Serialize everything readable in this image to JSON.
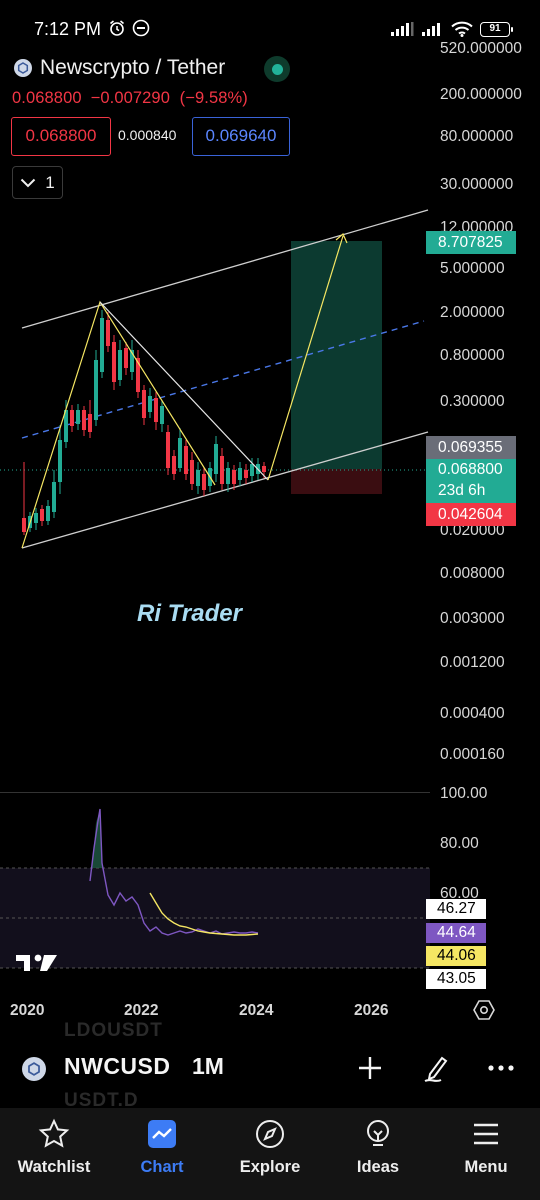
{
  "status": {
    "time": "7:12 PM",
    "battery": "91",
    "icons": [
      "alarm-icon",
      "no-disturb-icon",
      "signal-icon",
      "signal-icon",
      "wifi-icon",
      "battery-icon"
    ]
  },
  "header": {
    "title": "Newscrypto / Tether",
    "price": "0.068800",
    "change": "−0.007290",
    "change_pct": "(−9.58%)",
    "bid": "0.068800",
    "spread": "0.000840",
    "ask": "0.069640",
    "indicators_count": "1"
  },
  "price_axis": [
    "520.000000",
    "200.000000",
    "80.000000",
    "30.000000",
    "12.000000",
    "5.000000",
    "2.000000",
    "0.800000",
    "0.300000",
    "0.020000",
    "0.008000",
    "0.003000",
    "0.001200",
    "0.000400",
    "0.000160"
  ],
  "price_tags": {
    "target": "8.707825",
    "line": "0.069355",
    "last": "0.068800",
    "countdown": "23d 6h",
    "stop": "0.042604"
  },
  "watermark": "Ri Trader",
  "rsi": {
    "axis": [
      "100.00",
      "80.00",
      "60.00"
    ],
    "tags": [
      "46.27",
      "44.64",
      "44.06",
      "43.05"
    ]
  },
  "time_axis": [
    "2020",
    "2022",
    "2024",
    "2026"
  ],
  "toolbar": {
    "symbol": "NWCUSD",
    "interval": "1M",
    "ghost_top": "LDOUSDT",
    "ghost_bottom": "USDT.D"
  },
  "nav": {
    "watchlist": "Watchlist",
    "chart": "Chart",
    "explore": "Explore",
    "ideas": "Ideas",
    "menu": "Menu"
  },
  "colors": {
    "background": "#000000",
    "bearish": "#f23645",
    "bullish": "#22ab94",
    "accent": "#3d7cf5",
    "drawing": "#f5e663",
    "rsi_line": "#7e57c2"
  }
}
